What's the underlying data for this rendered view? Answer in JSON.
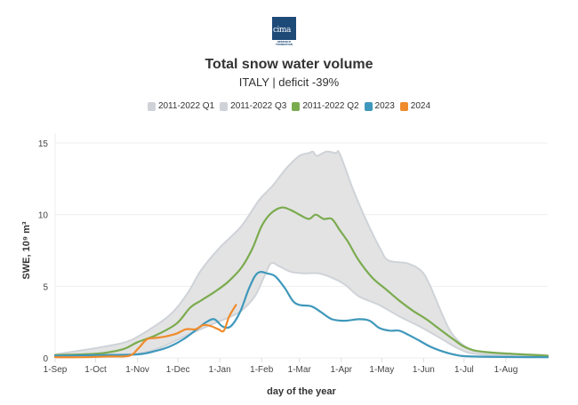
{
  "logo": {
    "text": "cima",
    "subtext": "RESEARCH FOUNDATION"
  },
  "chart_data": {
    "type": "area",
    "title": "Total snow water volume",
    "subtitle": "ITALY | deficit -39%",
    "xlabel": "day of the year",
    "ylabel": "SWE, 10⁹ m³",
    "ylim": [
      0,
      16
    ],
    "xlim_days": [
      0,
      365
    ],
    "yticks": [
      0,
      5,
      10,
      15
    ],
    "xticks": [
      {
        "label": "1-Sep",
        "day": 0
      },
      {
        "label": "1-Oct",
        "day": 30
      },
      {
        "label": "1-Nov",
        "day": 61
      },
      {
        "label": "1-Dec",
        "day": 91
      },
      {
        "label": "1-Jan",
        "day": 122
      },
      {
        "label": "1-Feb",
        "day": 153
      },
      {
        "label": "1-Mar",
        "day": 181
      },
      {
        "label": "1-Apr",
        "day": 212
      },
      {
        "label": "1-May",
        "day": 242
      },
      {
        "label": "1-Jun",
        "day": 273
      },
      {
        "label": "1-Jul",
        "day": 303
      },
      {
        "label": "1-Aug",
        "day": 334
      }
    ],
    "grid": true,
    "legend_position": "top-center",
    "legend": [
      {
        "name": "2011-2022 Q1",
        "color": "#cfd3d8"
      },
      {
        "name": "2011-2022 Q3",
        "color": "#cfd3d8"
      },
      {
        "name": "2011-2022 Q2",
        "color": "#7bab4f"
      },
      {
        "name": "2023",
        "color": "#3f98bb"
      },
      {
        "name": "2024",
        "color": "#ef8b2c"
      }
    ],
    "band_fill": "#e3e3e3",
    "band_line": "#cfd3d8",
    "series": [
      {
        "name": "2011-2022 Q3",
        "role": "band-upper",
        "x": [
          0,
          31,
          52,
          65,
          85,
          98,
          108,
          121,
          138,
          151,
          161,
          171,
          181,
          188,
          191,
          194,
          201,
          208,
          210,
          214,
          221,
          231,
          241,
          247,
          261,
          271,
          277,
          287,
          294,
          304,
          317,
          365
        ],
        "y": [
          0.25,
          0.7,
          1.1,
          1.7,
          3.0,
          4.5,
          6.1,
          7.6,
          9.2,
          11.0,
          12.0,
          13.2,
          14.1,
          14.3,
          14.4,
          14.1,
          14.4,
          14.3,
          14.4,
          13.5,
          11.7,
          9.5,
          7.6,
          6.8,
          6.6,
          6.1,
          5.2,
          3.0,
          1.7,
          0.8,
          0.4,
          0.2
        ]
      },
      {
        "name": "2011-2022 Q1",
        "role": "band-lower",
        "x": [
          0,
          31,
          61,
          80,
          98,
          115,
          128,
          138,
          148,
          155,
          160,
          166,
          175,
          185,
          195,
          205,
          215,
          225,
          240,
          255,
          270,
          285,
          300,
          315,
          365
        ],
        "y": [
          0.1,
          0.15,
          0.3,
          0.8,
          1.6,
          2.3,
          2.8,
          3.3,
          4.3,
          5.7,
          6.6,
          6.4,
          6.0,
          5.9,
          5.9,
          5.6,
          5.1,
          4.3,
          3.7,
          2.9,
          2.2,
          1.4,
          0.6,
          0.25,
          0.1
        ]
      },
      {
        "name": "2011-2022 Q2",
        "role": "line",
        "x": [
          0,
          31,
          50,
          61,
          75,
          90,
          100,
          108,
          118,
          128,
          138,
          146,
          153,
          160,
          168,
          175,
          181,
          188,
          193,
          199,
          205,
          211,
          217,
          225,
          235,
          245,
          255,
          265,
          275,
          285,
          295,
          305,
          320,
          365
        ],
        "y": [
          0.2,
          0.3,
          0.6,
          1.1,
          1.6,
          2.4,
          3.5,
          4.0,
          4.6,
          5.3,
          6.3,
          7.6,
          9.2,
          10.1,
          10.5,
          10.3,
          10.0,
          9.7,
          10.0,
          9.7,
          9.7,
          8.9,
          8.1,
          6.8,
          5.6,
          4.8,
          4.0,
          3.3,
          2.7,
          2.0,
          1.3,
          0.7,
          0.4,
          0.15
        ]
      },
      {
        "name": "2023",
        "role": "line",
        "x": [
          0,
          31,
          61,
          75,
          85,
          95,
          105,
          112,
          118,
          124,
          130,
          137,
          143,
          148,
          152,
          157,
          163,
          170,
          176,
          181,
          190,
          197,
          205,
          215,
          225,
          233,
          240,
          248,
          255,
          262,
          270,
          280,
          295,
          310,
          365
        ],
        "y": [
          0.15,
          0.2,
          0.25,
          0.5,
          0.8,
          1.3,
          2.0,
          2.5,
          2.7,
          2.2,
          2.2,
          3.2,
          4.7,
          5.7,
          6.0,
          5.9,
          5.7,
          4.9,
          4.0,
          3.7,
          3.6,
          3.2,
          2.7,
          2.6,
          2.7,
          2.6,
          2.1,
          1.9,
          1.9,
          1.6,
          1.2,
          0.7,
          0.25,
          0.1,
          0.05
        ]
      },
      {
        "name": "2024",
        "role": "line",
        "x": [
          0,
          20,
          40,
          55,
          62,
          68,
          75,
          82,
          90,
          97,
          104,
          110,
          116,
          121,
          125,
          129,
          134
        ],
        "y": [
          0.05,
          0.05,
          0.1,
          0.15,
          0.7,
          1.3,
          1.4,
          1.5,
          1.7,
          2.0,
          2.0,
          2.3,
          2.2,
          2.0,
          1.9,
          2.9,
          3.7
        ]
      }
    ]
  }
}
